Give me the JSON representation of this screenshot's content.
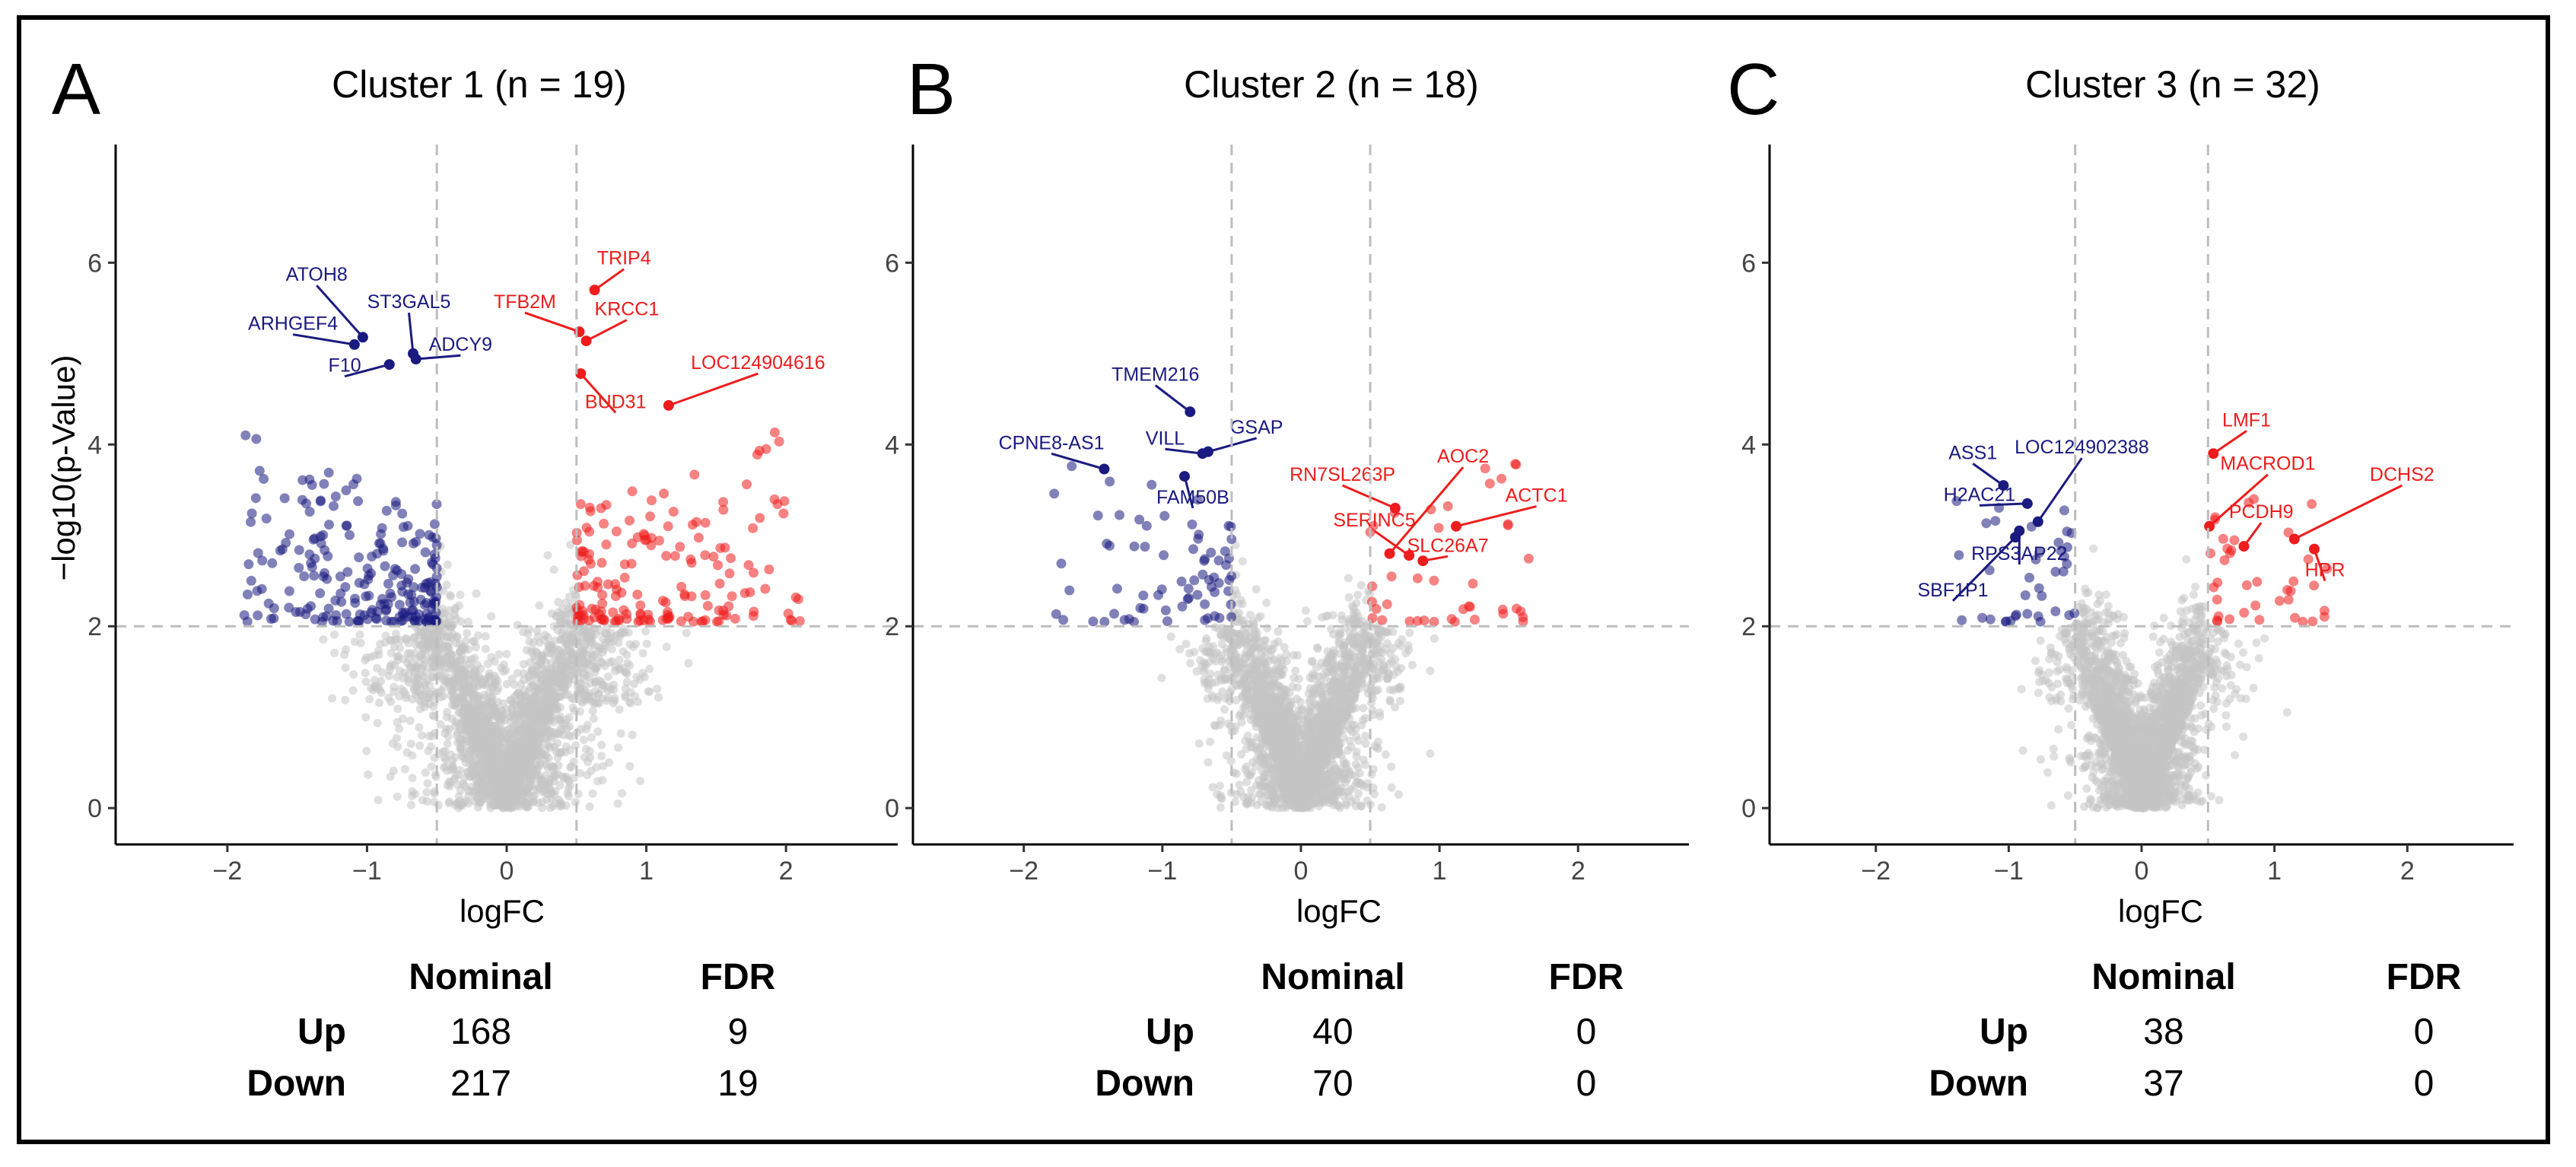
{
  "colors": {
    "up": "#ee1c1c",
    "down": "#1a1a80",
    "background_points": "#c4c4c4",
    "threshold_line": "#bdbdbd"
  },
  "chart_data": [
    {
      "panel": "A",
      "type": "scatter",
      "title": "Cluster 1 (n = 19)",
      "xlabel": "logFC",
      "ylabel": "−log10(p-Value)",
      "xlim": [
        -2.8,
        2.8
      ],
      "ylim": [
        -0.4,
        7.3
      ],
      "xticks": [
        -2,
        -1,
        0,
        1,
        2
      ],
      "xtick_labels": [
        "−2",
        "−1",
        "0",
        "1",
        "2"
      ],
      "yticks": [
        0,
        2,
        4,
        6
      ],
      "ytick_labels": [
        "0",
        "2",
        "4",
        "6"
      ],
      "thresholds": {
        "logFC": [
          -0.5,
          0.5
        ],
        "p": 2
      },
      "cloud_spread": 1.0,
      "n_up": 168,
      "n_down": 217,
      "max_up_x": 2.1,
      "max_down_x": -1.9,
      "labeled": [
        {
          "gene": "ATOH8",
          "x": -1.03,
          "y": 5.18,
          "tx": -1.36,
          "ty": 5.8,
          "dir": "down"
        },
        {
          "gene": "ST3GAL5",
          "x": -0.67,
          "y": 5.0,
          "tx": -0.7,
          "ty": 5.5,
          "dir": "down"
        },
        {
          "gene": "ARHGEF4",
          "x": -1.09,
          "y": 5.1,
          "tx": -1.53,
          "ty": 5.26,
          "dir": "down"
        },
        {
          "gene": "ADCY9",
          "x": -0.65,
          "y": 4.94,
          "tx": -0.33,
          "ty": 5.03,
          "dir": "down"
        },
        {
          "gene": "F10",
          "x": -0.84,
          "y": 4.88,
          "tx": -1.16,
          "ty": 4.8,
          "dir": "down"
        },
        {
          "gene": "TRIP4",
          "x": 0.63,
          "y": 5.7,
          "tx": 0.84,
          "ty": 5.98,
          "dir": "up"
        },
        {
          "gene": "TFB2M",
          "x": 0.52,
          "y": 5.24,
          "tx": 0.13,
          "ty": 5.5,
          "dir": "up"
        },
        {
          "gene": "KRCC1",
          "x": 0.57,
          "y": 5.14,
          "tx": 0.86,
          "ty": 5.42,
          "dir": "up"
        },
        {
          "gene": "BUD31",
          "x": 0.53,
          "y": 4.78,
          "tx": 0.78,
          "ty": 4.4,
          "dir": "up"
        },
        {
          "gene": "LOC124904616",
          "x": 1.16,
          "y": 4.43,
          "tx": 1.8,
          "ty": 4.83,
          "dir": "up"
        }
      ],
      "table": {
        "header": [
          "Nominal",
          "FDR"
        ],
        "rows": [
          {
            "label": "Up",
            "nominal": "168",
            "fdr": "9"
          },
          {
            "label": "Down",
            "nominal": "217",
            "fdr": "19"
          }
        ]
      }
    },
    {
      "panel": "B",
      "type": "scatter",
      "title": "Cluster 2 (n = 18)",
      "xlabel": "logFC",
      "ylabel": "",
      "xlim": [
        -2.8,
        2.8
      ],
      "ylim": [
        -0.4,
        7.3
      ],
      "xticks": [
        -2,
        -1,
        0,
        1,
        2
      ],
      "xtick_labels": [
        "−2",
        "−1",
        "0",
        "1",
        "2"
      ],
      "yticks": [
        0,
        2,
        4,
        6
      ],
      "ytick_labels": [
        "0",
        "2",
        "4",
        "6"
      ],
      "thresholds": {
        "logFC": [
          -0.5,
          0.5
        ],
        "p": 2
      },
      "cloud_spread": 0.75,
      "n_up": 40,
      "n_down": 70,
      "max_up_x": 1.7,
      "max_down_x": -1.8,
      "labeled": [
        {
          "gene": "TMEM216",
          "x": -0.8,
          "y": 4.36,
          "tx": -1.05,
          "ty": 4.7,
          "dir": "down"
        },
        {
          "gene": "GSAP",
          "x": -0.67,
          "y": 3.92,
          "tx": -0.32,
          "ty": 4.12,
          "dir": "down"
        },
        {
          "gene": "VILL",
          "x": -0.71,
          "y": 3.9,
          "tx": -0.98,
          "ty": 4.0,
          "dir": "down"
        },
        {
          "gene": "CPNE8-AS1",
          "x": -1.42,
          "y": 3.73,
          "tx": -1.8,
          "ty": 3.95,
          "dir": "down"
        },
        {
          "gene": "FAM50B",
          "x": -0.84,
          "y": 3.65,
          "tx": -0.78,
          "ty": 3.35,
          "dir": "down"
        },
        {
          "gene": "AOC2",
          "x": 0.64,
          "y": 2.8,
          "tx": 1.17,
          "ty": 3.8,
          "dir": "up"
        },
        {
          "gene": "RN7SL263P",
          "x": 0.68,
          "y": 3.3,
          "tx": 0.3,
          "ty": 3.6,
          "dir": "up"
        },
        {
          "gene": "ACTC1",
          "x": 1.12,
          "y": 3.1,
          "tx": 1.7,
          "ty": 3.37,
          "dir": "up"
        },
        {
          "gene": "SERINC5",
          "x": 0.78,
          "y": 2.78,
          "tx": 0.53,
          "ty": 3.1,
          "dir": "up"
        },
        {
          "gene": "SLC26A7",
          "x": 0.88,
          "y": 2.72,
          "tx": 1.06,
          "ty": 2.82,
          "dir": "up"
        }
      ],
      "table": {
        "header": [
          "Nominal",
          "FDR"
        ],
        "rows": [
          {
            "label": "Up",
            "nominal": "40",
            "fdr": "0"
          },
          {
            "label": "Down",
            "nominal": "70",
            "fdr": "0"
          }
        ]
      }
    },
    {
      "panel": "C",
      "type": "scatter",
      "title": "Cluster 3 (n = 32)",
      "xlabel": "logFC",
      "ylabel": "",
      "xlim": [
        -2.8,
        2.8
      ],
      "ylim": [
        -0.4,
        7.3
      ],
      "xticks": [
        -2,
        -1,
        0,
        1,
        2
      ],
      "xtick_labels": [
        "−2",
        "−1",
        "0",
        "1",
        "2"
      ],
      "yticks": [
        0,
        2,
        4,
        6
      ],
      "ytick_labels": [
        "0",
        "2",
        "4",
        "6"
      ],
      "thresholds": {
        "logFC": [
          -0.5,
          0.5
        ],
        "p": 2
      },
      "cloud_spread": 0.7,
      "n_up": 38,
      "n_down": 37,
      "max_up_x": 1.4,
      "max_down_x": -1.4,
      "labeled": [
        {
          "gene": "ASS1",
          "x": -1.04,
          "y": 3.55,
          "tx": -1.27,
          "ty": 3.84,
          "dir": "down"
        },
        {
          "gene": "LOC124902388",
          "x": -0.78,
          "y": 3.15,
          "tx": -0.45,
          "ty": 3.9,
          "dir": "down"
        },
        {
          "gene": "H2AC21",
          "x": -0.86,
          "y": 3.35,
          "tx": -1.22,
          "ty": 3.38,
          "dir": "down"
        },
        {
          "gene": "RPS3AP22",
          "x": -0.92,
          "y": 3.05,
          "tx": -0.92,
          "ty": 2.73,
          "dir": "down"
        },
        {
          "gene": "SBF1P1",
          "x": -0.95,
          "y": 2.98,
          "tx": -1.42,
          "ty": 2.33,
          "dir": "down"
        },
        {
          "gene": "LMF1",
          "x": 0.54,
          "y": 3.9,
          "tx": 0.79,
          "ty": 4.2,
          "dir": "up"
        },
        {
          "gene": "MACROD1",
          "x": 0.51,
          "y": 3.1,
          "tx": 0.95,
          "ty": 3.72,
          "dir": "up"
        },
        {
          "gene": "DCHS2",
          "x": 1.15,
          "y": 2.96,
          "tx": 1.96,
          "ty": 3.6,
          "dir": "up"
        },
        {
          "gene": "PCDH9",
          "x": 0.77,
          "y": 2.88,
          "tx": 0.9,
          "ty": 3.19,
          "dir": "up"
        },
        {
          "gene": "HPR",
          "x": 1.3,
          "y": 2.85,
          "tx": 1.38,
          "ty": 2.55,
          "dir": "up"
        }
      ],
      "table": {
        "header": [
          "Nominal",
          "FDR"
        ],
        "rows": [
          {
            "label": "Up",
            "nominal": "38",
            "fdr": "0"
          },
          {
            "label": "Down",
            "nominal": "37",
            "fdr": "0"
          }
        ]
      }
    }
  ]
}
